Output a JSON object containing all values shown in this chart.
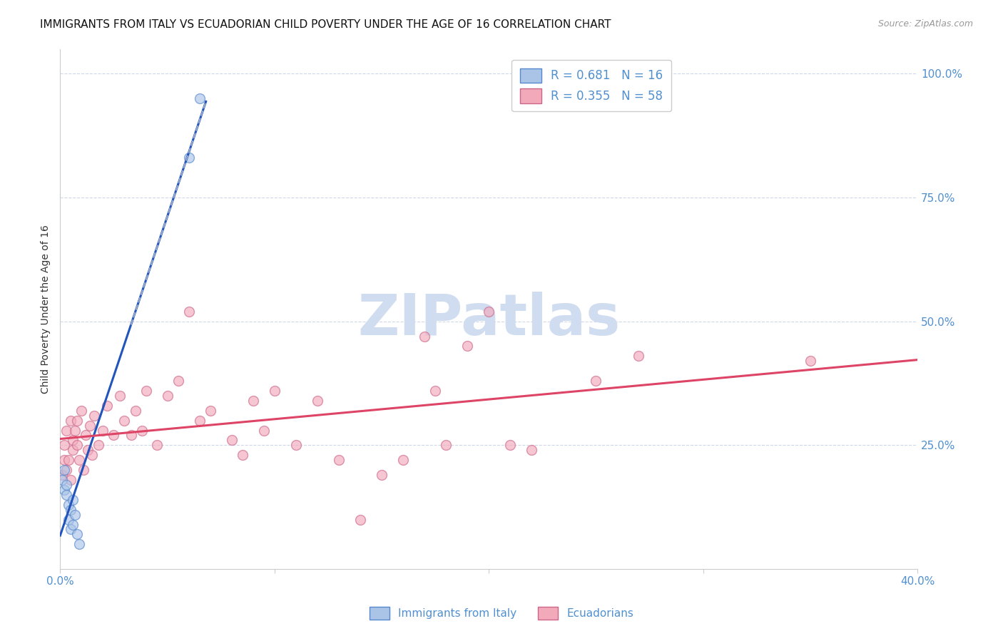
{
  "title": "IMMIGRANTS FROM ITALY VS ECUADORIAN CHILD POVERTY UNDER THE AGE OF 16 CORRELATION CHART",
  "source": "Source: ZipAtlas.com",
  "ylabel": "Child Poverty Under the Age of 16",
  "legend1_label": "R = 0.681   N = 16",
  "legend2_label": "R = 0.355   N = 58",
  "legend1_face": "#aac4e8",
  "legend2_face": "#f2aabb",
  "legend1_edge": "#5588cc",
  "legend2_edge": "#cc6688",
  "trendline1_color": "#2255bb",
  "trendline2_color": "#dd4466",
  "trendline_dash_color": "#99aacc",
  "watermark": "ZIPatlas",
  "italy_x": [
    0.001,
    0.002,
    0.002,
    0.003,
    0.003,
    0.004,
    0.004,
    0.005,
    0.005,
    0.006,
    0.006,
    0.007,
    0.008,
    0.009,
    0.06,
    0.065
  ],
  "italy_y": [
    0.18,
    0.16,
    0.2,
    0.17,
    0.15,
    0.13,
    0.1,
    0.08,
    0.12,
    0.14,
    0.09,
    0.11,
    0.07,
    0.05,
    0.83,
    0.95
  ],
  "ecuador_x": [
    0.001,
    0.002,
    0.002,
    0.003,
    0.003,
    0.004,
    0.005,
    0.005,
    0.006,
    0.006,
    0.007,
    0.008,
    0.008,
    0.009,
    0.01,
    0.011,
    0.012,
    0.013,
    0.014,
    0.015,
    0.016,
    0.018,
    0.02,
    0.022,
    0.025,
    0.028,
    0.03,
    0.033,
    0.035,
    0.038,
    0.04,
    0.045,
    0.05,
    0.055,
    0.06,
    0.065,
    0.07,
    0.08,
    0.085,
    0.09,
    0.095,
    0.1,
    0.11,
    0.12,
    0.13,
    0.14,
    0.15,
    0.16,
    0.17,
    0.175,
    0.18,
    0.19,
    0.2,
    0.21,
    0.22,
    0.25,
    0.27,
    0.35
  ],
  "ecuador_y": [
    0.19,
    0.22,
    0.25,
    0.2,
    0.28,
    0.22,
    0.3,
    0.18,
    0.26,
    0.24,
    0.28,
    0.3,
    0.25,
    0.22,
    0.32,
    0.2,
    0.27,
    0.24,
    0.29,
    0.23,
    0.31,
    0.25,
    0.28,
    0.33,
    0.27,
    0.35,
    0.3,
    0.27,
    0.32,
    0.28,
    0.36,
    0.25,
    0.35,
    0.38,
    0.52,
    0.3,
    0.32,
    0.26,
    0.23,
    0.34,
    0.28,
    0.36,
    0.25,
    0.34,
    0.22,
    0.1,
    0.19,
    0.22,
    0.47,
    0.36,
    0.25,
    0.45,
    0.52,
    0.25,
    0.24,
    0.38,
    0.43,
    0.42
  ],
  "scatter_size": 100,
  "background_color": "#ffffff",
  "grid_color": "#d0d8e8",
  "title_fontsize": 11,
  "axis_color": "#5090d0",
  "watermark_color": "#d0ddf0",
  "watermark_fontsize": 58,
  "xlim": [
    0,
    0.4
  ],
  "ylim": [
    0,
    1.05
  ]
}
